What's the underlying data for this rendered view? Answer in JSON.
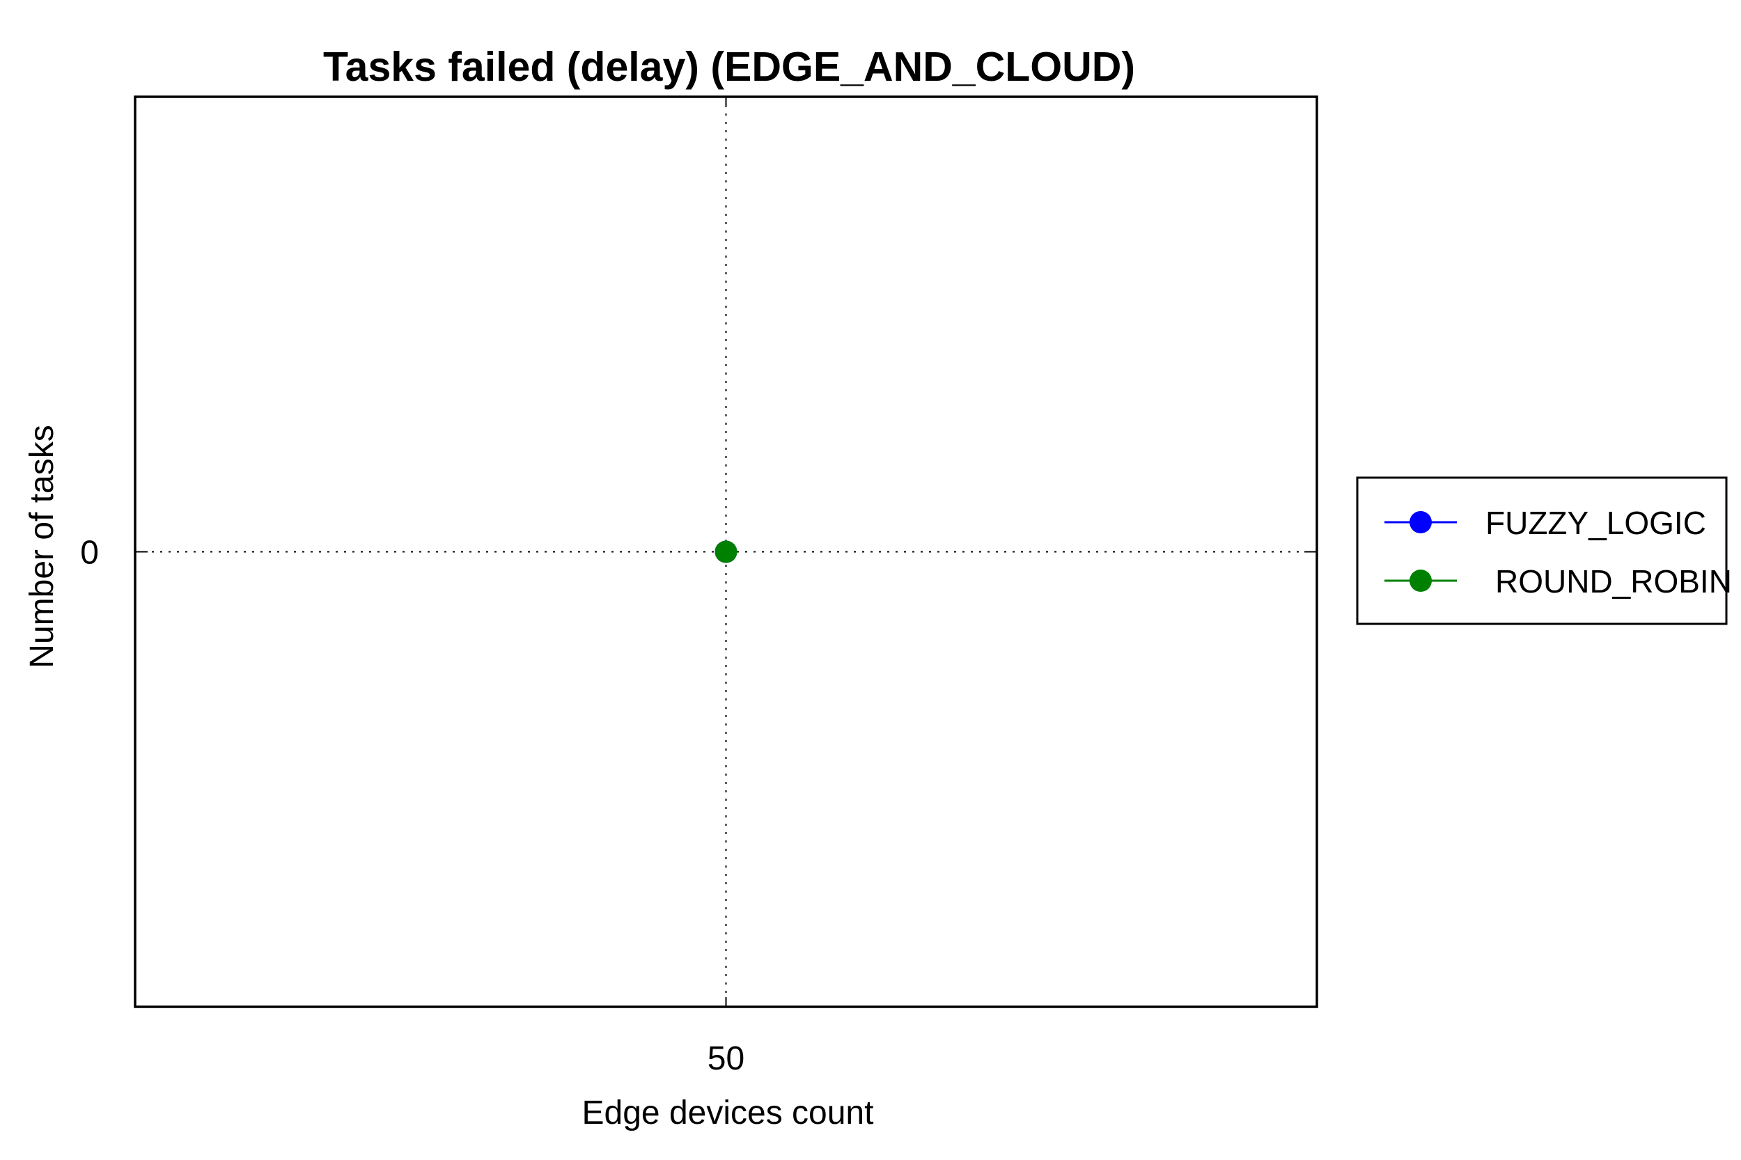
{
  "chart_data": {
    "type": "line",
    "title": "Tasks failed (delay) (EDGE_AND_CLOUD)",
    "xlabel": "Edge devices count",
    "ylabel": "Number of tasks",
    "x": [
      50
    ],
    "x_ticks": [
      "50"
    ],
    "y_ticks": [
      "0"
    ],
    "xlim": [
      49,
      51
    ],
    "ylim": [
      -1,
      1
    ],
    "grid": true,
    "legend_position": "right",
    "series": [
      {
        "name": "FUZZY_LOGIC",
        "color": "#0000ff",
        "values": [
          0
        ]
      },
      {
        "name": "ROUND_ROBIN",
        "color": "#008000",
        "values": [
          0
        ]
      }
    ]
  }
}
